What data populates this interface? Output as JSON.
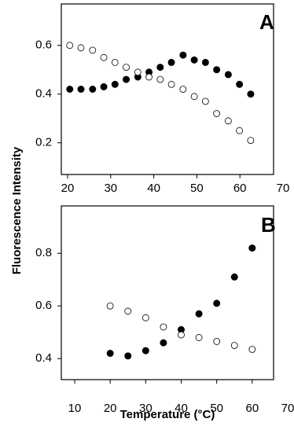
{
  "y_label": "Fluorescence Intensity",
  "x_label": "Temperature (°C)",
  "chart_data": [
    {
      "type": "scatter",
      "panel_label": "A",
      "x": [
        20.5,
        23.1,
        25.8,
        28.4,
        31,
        33.6,
        36.3,
        38.9,
        41.5,
        44.1,
        46.8,
        49.4,
        52,
        54.6,
        57.3,
        59.9,
        62.5
      ],
      "series": [
        {
          "marker": "filled",
          "color": "#000000",
          "values": [
            0.42,
            0.42,
            0.42,
            0.43,
            0.44,
            0.46,
            0.47,
            0.49,
            0.51,
            0.53,
            0.56,
            0.54,
            0.53,
            0.5,
            0.48,
            0.44,
            0.4
          ]
        },
        {
          "marker": "open",
          "color": "#000000",
          "values": [
            0.6,
            0.59,
            0.58,
            0.55,
            0.53,
            0.51,
            0.49,
            0.47,
            0.46,
            0.44,
            0.42,
            0.39,
            0.37,
            0.32,
            0.29,
            0.25,
            0.21
          ]
        }
      ],
      "xlim": [
        20,
        70
      ],
      "xticks": [
        20,
        30,
        40,
        50,
        60,
        70
      ],
      "ylim": [
        0.07,
        0.77
      ],
      "yticks": [
        0.2,
        0.4,
        0.6
      ]
    },
    {
      "type": "scatter",
      "panel_label": "B",
      "x": [
        20,
        25,
        30,
        35,
        40,
        45,
        50,
        55,
        60
      ],
      "series": [
        {
          "marker": "filled",
          "color": "#000000",
          "values": [
            0.42,
            0.41,
            0.43,
            0.46,
            0.51,
            0.57,
            0.61,
            0.71,
            0.82
          ]
        },
        {
          "marker": "open",
          "color": "#000000",
          "values": [
            0.6,
            0.58,
            0.555,
            0.52,
            0.49,
            0.48,
            0.465,
            0.45,
            0.435
          ]
        }
      ],
      "xlim": [
        10,
        70
      ],
      "xticks": [
        10,
        20,
        30,
        40,
        50,
        60,
        70
      ],
      "ylim": [
        0.32,
        0.98
      ],
      "yticks": [
        0.4,
        0.6,
        0.8
      ]
    }
  ]
}
